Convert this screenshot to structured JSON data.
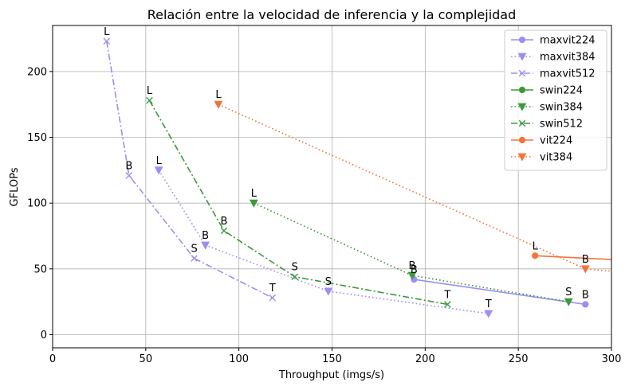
{
  "chart_data": {
    "type": "line",
    "title": "Relación entre la velocidad de inferencia y la complejidad",
    "xlabel": "Throughput (imgs/s)",
    "ylabel": "GFLOPs",
    "xlim": [
      0,
      300
    ],
    "ylim": [
      -10,
      235
    ],
    "xticks": [
      0,
      50,
      100,
      150,
      200,
      250,
      300
    ],
    "yticks": [
      0,
      50,
      100,
      150,
      200
    ],
    "grid": true,
    "legend_position": "top-right",
    "series": [
      {
        "name": "maxvit224",
        "color": "#9b8ff0",
        "linestyle": "solid",
        "marker": "circle",
        "x": [
          194,
          286
        ],
        "y": [
          42,
          23
        ],
        "labels": [
          "B",
          "B"
        ]
      },
      {
        "name": "maxvit384",
        "color": "#9b8ff0",
        "linestyle": "dotted",
        "marker": "triangle-down",
        "x": [
          57,
          82,
          148,
          234
        ],
        "y": [
          125,
          68,
          33,
          16
        ],
        "labels": [
          "L",
          "B",
          "S",
          "T"
        ]
      },
      {
        "name": "maxvit512",
        "color": "#9b8ff0",
        "linestyle": "dashdot",
        "marker": "x",
        "x": [
          29,
          41,
          76,
          118
        ],
        "y": [
          223,
          121,
          58,
          28
        ],
        "labels": [
          "L",
          "B",
          "S",
          "T"
        ]
      },
      {
        "name": "swin224",
        "color": "#3a9a3a",
        "linestyle": "solid",
        "marker": "circle",
        "x": [],
        "y": [],
        "labels": []
      },
      {
        "name": "swin384",
        "color": "#3a9a3a",
        "linestyle": "dotted",
        "marker": "triangle-down",
        "x": [
          108,
          193,
          277
        ],
        "y": [
          100,
          45,
          25
        ],
        "labels": [
          "L",
          "B",
          "S"
        ]
      },
      {
        "name": "swin512",
        "color": "#3a9a3a",
        "linestyle": "dashdot",
        "marker": "x",
        "x": [
          52,
          92,
          130,
          212
        ],
        "y": [
          178,
          79,
          44,
          23
        ],
        "labels": [
          "L",
          "B",
          "S",
          "T"
        ]
      },
      {
        "name": "vit224",
        "color": "#f4733a",
        "linestyle": "solid",
        "marker": "circle",
        "x": [
          259,
          302
        ],
        "y": [
          60,
          57
        ],
        "labels": [
          "L",
          ""
        ]
      },
      {
        "name": "vit384",
        "color": "#f4733a",
        "linestyle": "dotted",
        "marker": "triangle-down",
        "x": [
          89,
          286,
          302
        ],
        "y": [
          175,
          50,
          48
        ],
        "labels": [
          "L",
          "B",
          ""
        ]
      }
    ]
  }
}
